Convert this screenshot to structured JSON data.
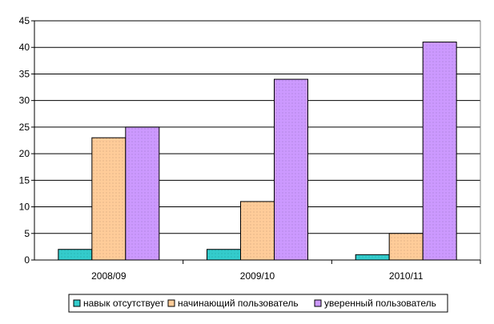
{
  "chart_data": {
    "type": "bar",
    "categories": [
      "2008/09",
      "2009/10",
      "2010/11"
    ],
    "series": [
      {
        "name": "навык отсутствует",
        "values": [
          2,
          2,
          1
        ],
        "color": "#33cccc"
      },
      {
        "name": "начинающий пользователь",
        "values": [
          23,
          11,
          5
        ],
        "color": "#ffcc99"
      },
      {
        "name": "уверенный пользователь",
        "values": [
          25,
          34,
          41
        ],
        "color": "#cc99ff"
      }
    ],
    "ylim": [
      0,
      45
    ],
    "yticks": [
      0,
      5,
      10,
      15,
      20,
      25,
      30,
      35,
      40,
      45
    ],
    "grid": true,
    "legend": "bottom"
  }
}
